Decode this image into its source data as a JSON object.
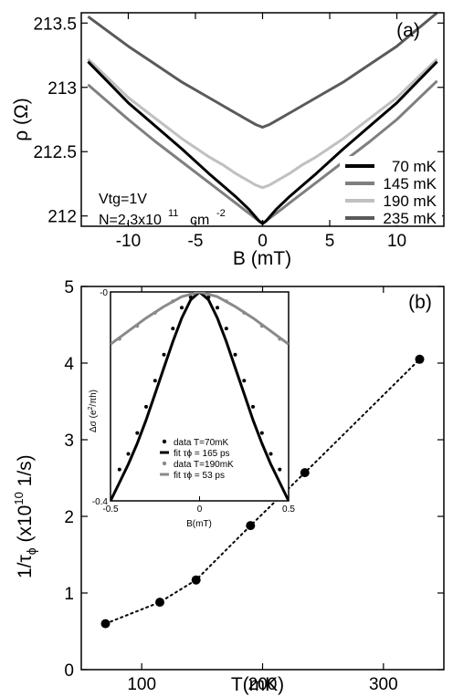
{
  "chart_data": [
    {
      "type": "line",
      "panel_label": "(a)",
      "xlabel": "B (mT)",
      "ylabel": "ρ (Ω)",
      "xlim": [
        -13.5,
        13.5
      ],
      "ylim": [
        211.92,
        213.58
      ],
      "xticks": [
        -10,
        -5,
        0,
        5,
        10
      ],
      "xtick_labels": [
        "-10",
        "-5",
        "0",
        "5",
        "10"
      ],
      "yticks": [
        212,
        212.5,
        213,
        213.5
      ],
      "ytick_labels": [
        "212",
        "212.5",
        "213",
        "213.5"
      ],
      "grid": false,
      "legend_position": "bottom-right",
      "annotations": {
        "vtg": "Vtg=1V",
        "density": "N=2.3x10",
        "density_exp": "11",
        "density_unit": "cm",
        "density_unit_exp": "-2"
      },
      "series": [
        {
          "name": "70 mK",
          "color": "#000000",
          "x": [
            -13,
            -10,
            -8,
            -6,
            -4,
            -3,
            -2,
            -1.5,
            -1,
            -0.5,
            -0.25,
            0,
            0.25,
            0.5,
            1,
            1.5,
            2,
            3,
            4,
            6,
            8,
            10,
            13
          ],
          "y": [
            213.2,
            212.88,
            212.7,
            212.52,
            212.33,
            212.24,
            212.15,
            212.1,
            212.05,
            211.99,
            211.96,
            211.94,
            211.96,
            211.99,
            212.05,
            212.1,
            212.15,
            212.24,
            212.33,
            212.52,
            212.7,
            212.88,
            213.2
          ]
        },
        {
          "name": "145 mK",
          "color": "#7f7f7f",
          "x": [
            -13,
            -10,
            -8,
            -6,
            -4,
            -3,
            -2,
            -1.5,
            -1,
            -0.5,
            -0.25,
            0,
            0.25,
            0.5,
            1,
            1.5,
            2,
            3,
            4,
            6,
            8,
            10,
            13
          ],
          "y": [
            213.02,
            212.75,
            212.58,
            212.42,
            212.26,
            212.18,
            212.1,
            212.06,
            212.02,
            211.98,
            211.96,
            211.95,
            211.96,
            211.98,
            212.02,
            212.06,
            212.1,
            212.18,
            212.26,
            212.42,
            212.58,
            212.75,
            213.05
          ]
        },
        {
          "name": "190 mK",
          "color": "#c0c0c0",
          "x": [
            -13,
            -10,
            -8,
            -6,
            -4,
            -3,
            -2,
            -1.5,
            -1,
            -0.5,
            -0.25,
            0,
            0.25,
            0.5,
            1,
            1.5,
            2,
            3,
            4,
            6,
            8,
            10,
            13
          ],
          "y": [
            213.22,
            212.92,
            212.76,
            212.6,
            212.46,
            212.4,
            212.33,
            212.3,
            212.27,
            212.24,
            212.23,
            212.22,
            212.23,
            212.24,
            212.27,
            212.3,
            212.33,
            212.4,
            212.46,
            212.6,
            212.76,
            212.92,
            213.22
          ]
        },
        {
          "name": "235 mK",
          "color": "#5a5a5a",
          "x": [
            -13,
            -10,
            -8,
            -6,
            -4,
            -3,
            -2,
            -1.5,
            -1,
            -0.5,
            -0.25,
            0,
            0.25,
            0.5,
            1,
            1.5,
            2,
            3,
            4,
            6,
            8,
            10,
            13
          ],
          "y": [
            213.55,
            213.32,
            213.18,
            213.04,
            212.92,
            212.86,
            212.8,
            212.77,
            212.74,
            212.71,
            212.7,
            212.69,
            212.7,
            212.71,
            212.74,
            212.77,
            212.8,
            212.86,
            212.92,
            213.04,
            213.18,
            213.32,
            213.58
          ]
        }
      ]
    },
    {
      "type": "scatter",
      "panel_label": "(b)",
      "xlabel": "T(mK)",
      "ylabel": "1/τ",
      "ylabel_sub": "ϕ",
      "ylabel_rest": " (x10",
      "ylabel_exp": "10",
      "ylabel_unit": " 1/s)",
      "xlim": [
        50,
        350
      ],
      "ylim": [
        0,
        5
      ],
      "xticks": [
        100,
        200,
        300
      ],
      "xtick_labels": [
        "100",
        "200",
        "300"
      ],
      "yticks": [
        0,
        1,
        2,
        3,
        4,
        5
      ],
      "ytick_labels": [
        "0",
        "1",
        "2",
        "3",
        "4",
        "5"
      ],
      "grid": false,
      "line_style": "dotted",
      "series": [
        {
          "x": [
            70,
            115,
            145,
            190,
            235,
            330
          ],
          "y": [
            0.6,
            0.88,
            1.17,
            1.88,
            2.57,
            4.05
          ]
        }
      ]
    },
    {
      "type": "line",
      "role": "inset",
      "xlabel": "B(mT)",
      "ylabel": "Δσ (e",
      "ylabel_exp": "2",
      "ylabel_rest": "/πh)",
      "xlim": [
        -0.5,
        0.5
      ],
      "ylim": [
        -0.4,
        0
      ],
      "xticks": [
        -0.5,
        0,
        0.5
      ],
      "xtick_labels": [
        "-0.5",
        "0",
        "0.5"
      ],
      "yticks": [
        -0.4,
        0
      ],
      "ytick_labels": [
        "-0.4",
        "-0"
      ],
      "legend_position": "bottom-center",
      "series": [
        {
          "name": "data T=70mK",
          "kind": "points",
          "color": "#000000",
          "x": [
            -0.45,
            -0.4,
            -0.35,
            -0.3,
            -0.25,
            -0.2,
            -0.15,
            -0.1,
            -0.05,
            0,
            0.05,
            0.1,
            0.15,
            0.2,
            0.25,
            0.3,
            0.35,
            0.4,
            0.45
          ],
          "y": [
            -0.34,
            -0.31,
            -0.27,
            -0.22,
            -0.17,
            -0.12,
            -0.07,
            -0.03,
            -0.01,
            0,
            -0.01,
            -0.03,
            -0.07,
            -0.12,
            -0.17,
            -0.22,
            -0.27,
            -0.31,
            -0.34
          ]
        },
        {
          "name": "fit τϕ = 165 ps",
          "kind": "line",
          "color": "#000000",
          "x": [
            -0.5,
            -0.45,
            -0.4,
            -0.35,
            -0.3,
            -0.25,
            -0.2,
            -0.15,
            -0.1,
            -0.05,
            0,
            0.05,
            0.1,
            0.15,
            0.2,
            0.25,
            0.3,
            0.35,
            0.4,
            0.45,
            0.5
          ],
          "y": [
            -0.4,
            -0.365,
            -0.33,
            -0.29,
            -0.245,
            -0.195,
            -0.145,
            -0.095,
            -0.05,
            -0.015,
            0,
            -0.015,
            -0.05,
            -0.095,
            -0.145,
            -0.195,
            -0.245,
            -0.29,
            -0.33,
            -0.365,
            -0.4
          ]
        },
        {
          "name": "data T=190mK",
          "kind": "points",
          "color": "#8a8a8a",
          "x": [
            -0.45,
            -0.35,
            -0.25,
            -0.15,
            -0.05,
            0.05,
            0.15,
            0.25,
            0.35,
            0.45
          ],
          "y": [
            -0.09,
            -0.065,
            -0.04,
            -0.018,
            -0.004,
            -0.004,
            -0.018,
            -0.04,
            -0.065,
            -0.09
          ]
        },
        {
          "name": "fit τϕ = 53 ps",
          "kind": "line",
          "color": "#8a8a8a",
          "x": [
            -0.5,
            -0.4,
            -0.3,
            -0.2,
            -0.1,
            0,
            0.1,
            0.2,
            0.3,
            0.4,
            0.5
          ],
          "y": [
            -0.1,
            -0.075,
            -0.05,
            -0.028,
            -0.009,
            0,
            -0.009,
            -0.028,
            -0.05,
            -0.075,
            -0.1
          ]
        }
      ]
    }
  ]
}
